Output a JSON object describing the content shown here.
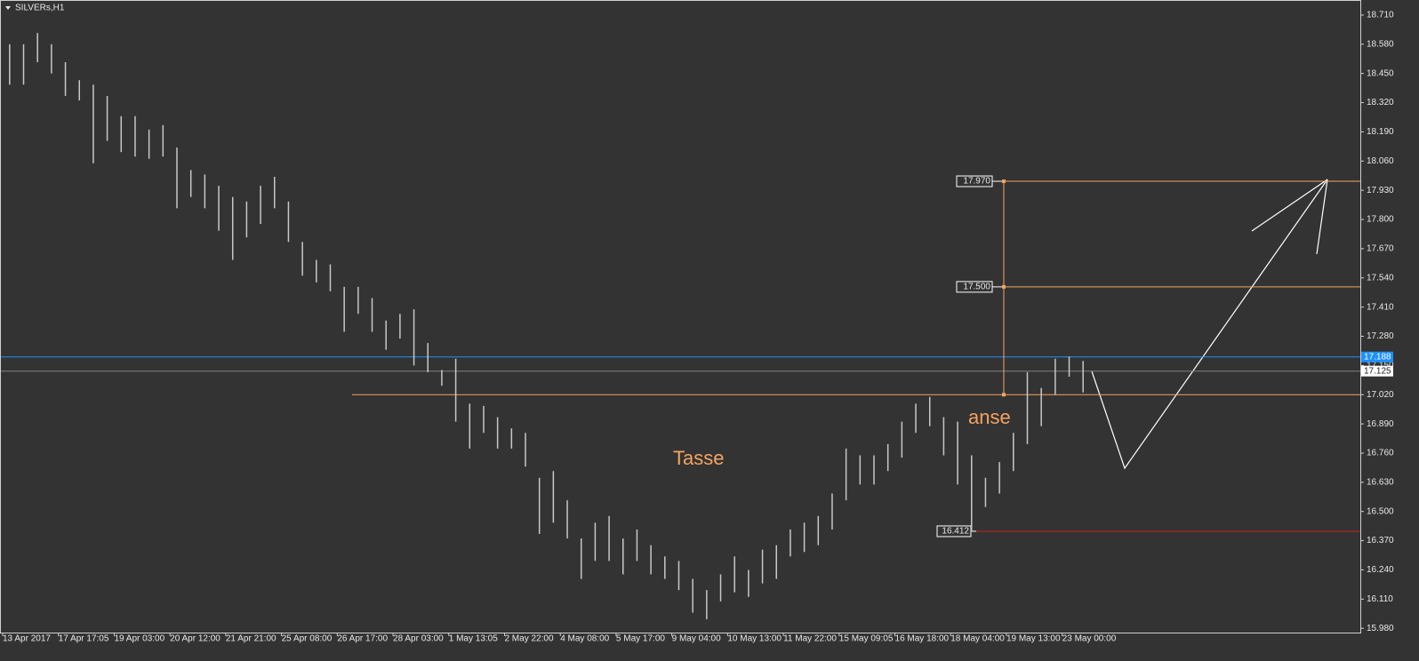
{
  "chart_data": {
    "type": "ohlc",
    "title": "SILVERs,H1",
    "color": "#c8c8c8",
    "categories": [
      "13 Apr 2017",
      null,
      null,
      null,
      "17 Apr 17:05",
      null,
      null,
      null,
      "19 Apr 03:00",
      null,
      null,
      null,
      "20 Apr 12:00",
      null,
      null,
      null,
      "21 Apr 21:00",
      null,
      null,
      null,
      "25 Apr 08:00",
      null,
      null,
      null,
      "26 Apr 17:00",
      null,
      null,
      null,
      "28 Apr 03:00",
      null,
      null,
      null,
      "1 May 13:05",
      null,
      null,
      null,
      "2 May 22:00",
      null,
      null,
      null,
      "4 May 08:00",
      null,
      null,
      null,
      "5 May 17:00",
      null,
      null,
      null,
      "9 May 04:00",
      null,
      null,
      null,
      "10 May 13:00",
      null,
      null,
      null,
      "11 May 22:00",
      null,
      null,
      null,
      "15 May 09:05",
      null,
      null,
      null,
      "16 May 18:00",
      null,
      null,
      null,
      "18 May 04:00",
      null,
      null,
      null,
      "19 May 13:00",
      null,
      null,
      null,
      "23 May 00:00",
      null
    ],
    "high": [
      18.58,
      18.58,
      18.63,
      18.58,
      18.5,
      18.42,
      18.4,
      18.35,
      18.26,
      18.26,
      18.2,
      18.22,
      18.12,
      18.02,
      18.0,
      17.95,
      17.9,
      17.88,
      17.95,
      17.99,
      17.88,
      17.7,
      17.62,
      17.6,
      17.5,
      17.5,
      17.45,
      17.35,
      17.38,
      17.4,
      17.25,
      17.13,
      17.18,
      16.98,
      16.97,
      16.92,
      16.87,
      16.85,
      16.65,
      16.68,
      16.55,
      16.38,
      16.45,
      16.48,
      16.38,
      16.42,
      16.35,
      16.3,
      16.28,
      16.2,
      16.15,
      16.22,
      16.3,
      16.24,
      16.33,
      16.35,
      16.42,
      16.45,
      16.48,
      16.58,
      16.78,
      16.75,
      16.75,
      16.8,
      16.9,
      16.98,
      17.01,
      16.92,
      16.9,
      16.75,
      16.65,
      16.72,
      16.85,
      17.12,
      17.05,
      17.18,
      17.19,
      17.17
    ],
    "low": [
      18.4,
      18.4,
      18.5,
      18.45,
      18.35,
      18.33,
      18.05,
      18.15,
      18.1,
      18.08,
      18.07,
      18.08,
      17.85,
      17.9,
      17.85,
      17.75,
      17.62,
      17.72,
      17.78,
      17.85,
      17.7,
      17.55,
      17.52,
      17.48,
      17.3,
      17.38,
      17.3,
      17.22,
      17.27,
      17.15,
      17.12,
      17.06,
      16.9,
      16.78,
      16.85,
      16.78,
      16.78,
      16.7,
      16.4,
      16.45,
      16.38,
      16.2,
      16.28,
      16.28,
      16.22,
      16.28,
      16.22,
      16.2,
      16.15,
      16.05,
      16.02,
      16.1,
      16.14,
      16.12,
      16.18,
      16.2,
      16.3,
      16.32,
      16.35,
      16.42,
      16.55,
      16.62,
      16.62,
      16.68,
      16.74,
      16.85,
      16.88,
      16.75,
      16.62,
      16.41,
      16.52,
      16.58,
      16.68,
      16.8,
      16.88,
      17.02,
      17.1,
      17.03
    ],
    "ylim": [
      15.961,
      18.777
    ],
    "yticks": [
      {
        "value": 18.71,
        "label": "18.710"
      },
      {
        "value": 18.58,
        "label": "18.580"
      },
      {
        "value": 18.45,
        "label": "18.450"
      },
      {
        "value": 18.32,
        "label": "18.320"
      },
      {
        "value": 18.19,
        "label": "18.190"
      },
      {
        "value": 18.06,
        "label": "18.060"
      },
      {
        "value": 17.93,
        "label": "17.930"
      },
      {
        "value": 17.8,
        "label": "17.800"
      },
      {
        "value": 17.67,
        "label": "17.670"
      },
      {
        "value": 17.54,
        "label": "17.540"
      },
      {
        "value": 17.41,
        "label": "17.410"
      },
      {
        "value": 17.28,
        "label": "17.280"
      },
      {
        "value": 17.15,
        "label": "17.150"
      },
      {
        "value": 17.02,
        "label": "17.020"
      },
      {
        "value": 16.89,
        "label": "16.890"
      },
      {
        "value": 16.76,
        "label": "16.760"
      },
      {
        "value": 16.63,
        "label": "16.630"
      },
      {
        "value": 16.5,
        "label": "16.500"
      },
      {
        "value": 16.37,
        "label": "16.370"
      },
      {
        "value": 16.24,
        "label": "16.240"
      },
      {
        "value": 16.11,
        "label": "16.110"
      },
      {
        "value": 15.98,
        "label": "15.980"
      }
    ],
    "price_lines": [
      {
        "value": 17.188,
        "label": "17.188",
        "color": "#1e90ff"
      },
      {
        "value": 17.125,
        "label": "17.125",
        "color": "#808080"
      }
    ],
    "base_level": {
      "value": 17.02,
      "color": "#f4a460"
    },
    "fib_levels": [
      {
        "value": 17.97,
        "label": "17.970"
      },
      {
        "value": 17.5,
        "label": "17.500"
      }
    ],
    "stop_level": {
      "value": 16.412,
      "label": "16.412",
      "color": "#cc2222"
    },
    "annotations": [
      "Tasse",
      "anse"
    ]
  }
}
